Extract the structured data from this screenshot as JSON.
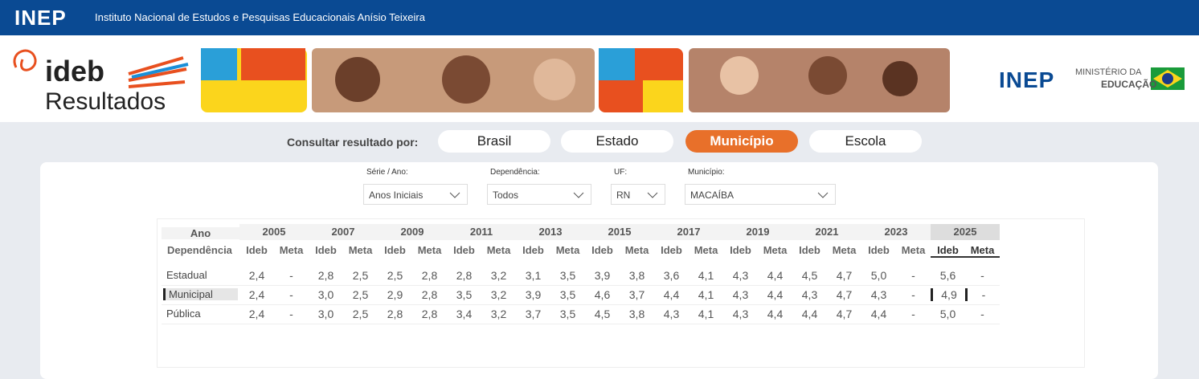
{
  "header": {
    "logo": "INEP",
    "title": "Instituto Nacional de Estudos e Pesquisas Educacionais Anísio Teixeira"
  },
  "banner": {
    "brand": "ideb",
    "subtitle": "Resultados",
    "right_logo": "INEP",
    "ministry_line1": "MINISTÉRIO DA",
    "ministry_line2": "EDUCAÇÃO"
  },
  "nav": {
    "label": "Consultar resultado por:",
    "options": [
      "Brasil",
      "Estado",
      "Município",
      "Escola"
    ]
  },
  "filters": [
    {
      "label": "Série / Ano:",
      "value": "Anos Iniciais"
    },
    {
      "label": "Dependência:",
      "value": "Todos"
    },
    {
      "label": "UF:",
      "value": "RN"
    },
    {
      "label": "Município:",
      "value": "MACAÍBA"
    }
  ],
  "table": {
    "corner": "Ano",
    "row_header": "Dependência",
    "years": [
      2005,
      2007,
      2009,
      2011,
      2013,
      2015,
      2017,
      2019,
      2021,
      2023,
      2025
    ],
    "subheaders": [
      "Ideb",
      "Meta"
    ],
    "rows": [
      {
        "name": "Estadual",
        "values": [
          "2,4",
          "-",
          "2,8",
          "2,5",
          "2,5",
          "2,8",
          "2,8",
          "3,2",
          "3,1",
          "3,5",
          "3,9",
          "3,8",
          "3,6",
          "4,1",
          "4,3",
          "4,4",
          "4,5",
          "4,7",
          "5,0",
          "-",
          "5,6",
          "-"
        ]
      },
      {
        "name": "Municipal",
        "values": [
          "2,4",
          "-",
          "3,0",
          "2,5",
          "2,9",
          "2,8",
          "3,5",
          "3,2",
          "3,9",
          "3,5",
          "4,6",
          "3,7",
          "4,4",
          "4,1",
          "4,3",
          "4,4",
          "4,3",
          "4,7",
          "4,3",
          "-",
          "4,9",
          "-"
        ]
      },
      {
        "name": "Pública",
        "values": [
          "2,4",
          "-",
          "3,0",
          "2,5",
          "2,8",
          "2,8",
          "3,4",
          "3,2",
          "3,7",
          "3,5",
          "4,5",
          "3,8",
          "4,3",
          "4,1",
          "4,3",
          "4,4",
          "4,4",
          "4,7",
          "4,4",
          "-",
          "5,0",
          "-"
        ]
      }
    ]
  }
}
